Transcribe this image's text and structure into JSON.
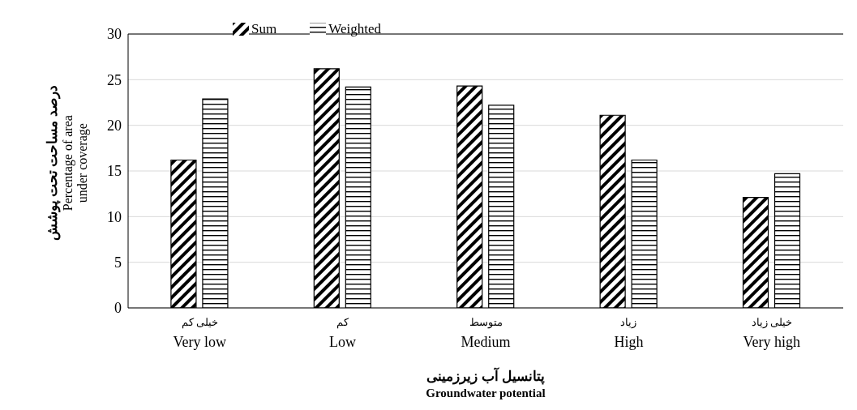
{
  "chart_data": {
    "type": "bar",
    "categories": [
      "خیلی کم\nVery low",
      "کم\nLow",
      "متوسط\nMedium",
      "زیاد\nHigh",
      "خیلی زیاد\nVery high"
    ],
    "series": [
      {
        "name": "Sum",
        "color": "#000000",
        "values": [
          16.2,
          26.2,
          24.3,
          21.1,
          12.1
        ]
      },
      {
        "name": "Weighted",
        "color": "#000000",
        "values": [
          22.9,
          24.2,
          22.2,
          16.2,
          14.7
        ]
      }
    ],
    "xlabel": "پتانسیل آب زیرزمینی\nGroundwater potential",
    "ylabel": "درصد مساحت تحت پوشش\nPercentage of area\nunder coverage",
    "ylim": [
      0,
      30
    ],
    "yticks": [
      0,
      5,
      10,
      15,
      20,
      25,
      30
    ],
    "grid": "y",
    "legend": "top"
  }
}
